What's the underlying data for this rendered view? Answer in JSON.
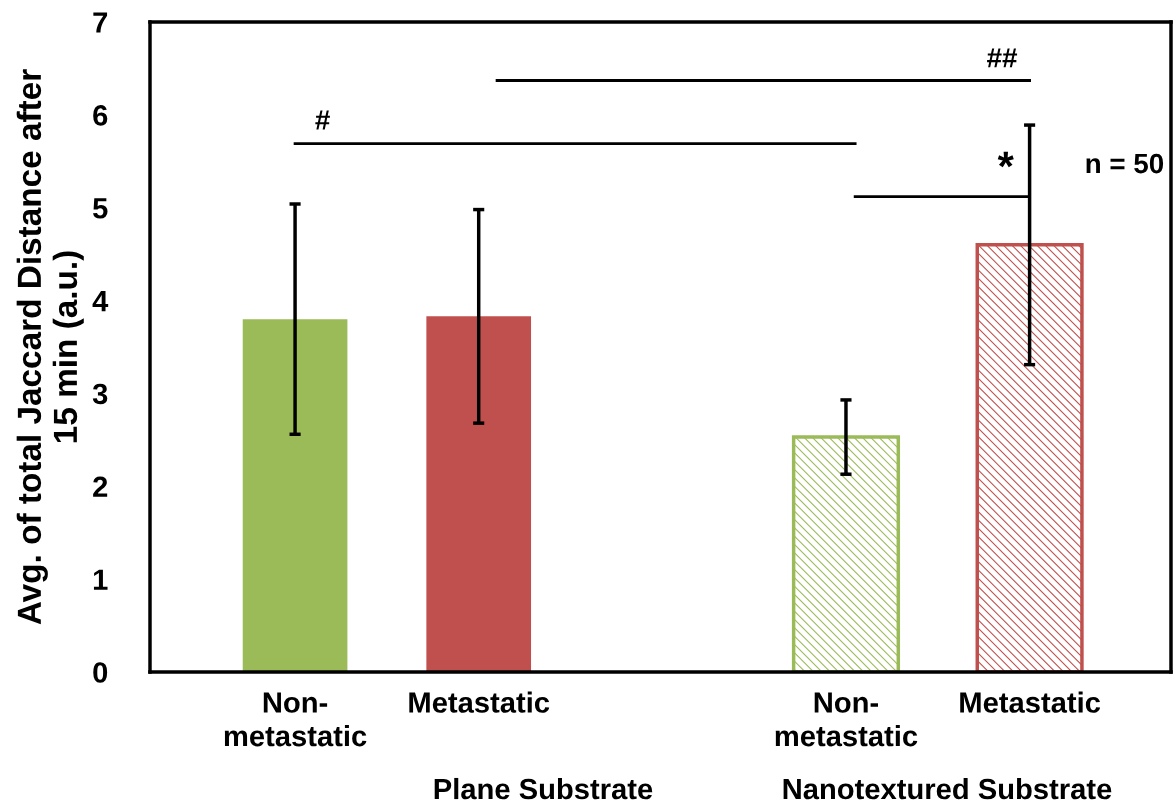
{
  "chart_data": {
    "type": "bar",
    "ylabel": "Avg. of total Jaccard Distance after\n15 min (a.u.)",
    "categories": [
      "Non-\nmetastatic",
      "Metastatic",
      null,
      "Non-\nmetastatic",
      "Metastatic"
    ],
    "values": [
      3.8,
      3.83,
      null,
      2.53,
      4.6
    ],
    "colors": [
      "#9bbb59",
      "#c0504d",
      "#ffffff",
      "#9bbb59",
      "#c0504d"
    ],
    "errors": [
      1.24,
      1.15,
      null,
      0.4,
      1.29
    ],
    "ylim": [
      0,
      7
    ],
    "yticks": [
      0,
      1,
      2,
      3,
      4,
      5,
      6,
      7
    ],
    "grid": false,
    "legend": false,
    "annotations": [
      "Plane Substrate",
      "Nanotextured Substrate",
      "#",
      "##",
      "*",
      "n = 50"
    ]
  }
}
